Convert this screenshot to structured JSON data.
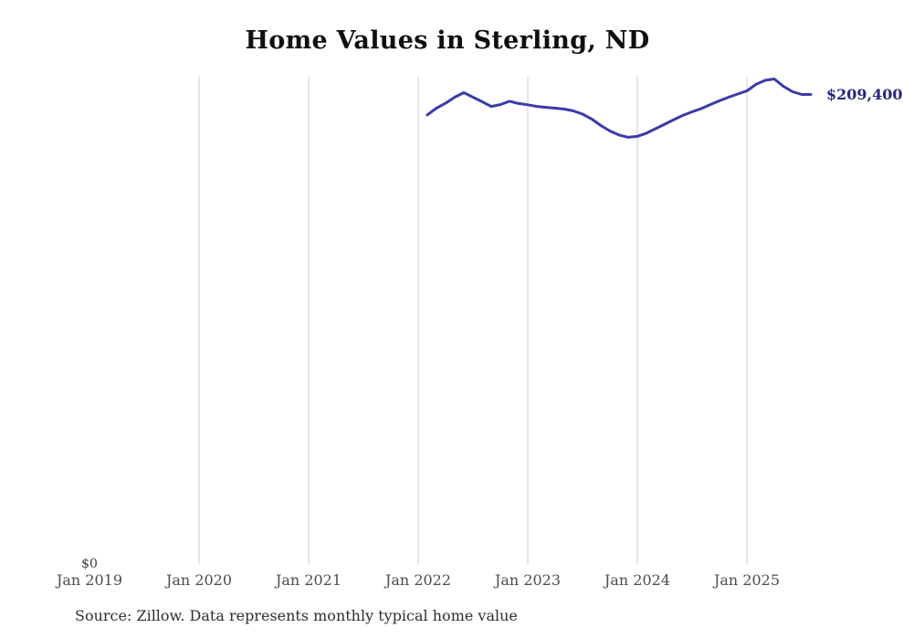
{
  "title": "Home Values in Sterling, ND",
  "source_note": "Source: Zillow. Data represents monthly typical home value",
  "y_zero_label": "$0",
  "end_value_label": "$209,400",
  "colors": {
    "line": "#3b3bab",
    "end_label": "#26267d",
    "grid": "#cccccc",
    "title_text": "#0f0f0f",
    "axis_text": "#4d4d4d",
    "source_text": "#2e2e2e"
  },
  "chart_data": {
    "type": "line",
    "title": "Home Values in Sterling, ND",
    "xlabel": "",
    "ylabel": "",
    "x_tick_labels": [
      "Jan 2019",
      "Jan 2020",
      "Jan 2021",
      "Jan 2022",
      "Jan 2023",
      "Jan 2024",
      "Jan 2025"
    ],
    "ylim": [
      0,
      217000
    ],
    "grid": "vertical",
    "legend": "none",
    "baseline_label": "$0",
    "latest_value_label": "$209,400",
    "series": [
      {
        "name": "Monthly typical home value",
        "x": [
          "2022-02",
          "2022-03",
          "2022-04",
          "2022-05",
          "2022-06",
          "2022-07",
          "2022-08",
          "2022-09",
          "2022-10",
          "2022-11",
          "2022-12",
          "2023-01",
          "2023-02",
          "2023-03",
          "2023-04",
          "2023-05",
          "2023-06",
          "2023-07",
          "2023-08",
          "2023-09",
          "2023-10",
          "2023-11",
          "2023-12",
          "2024-01",
          "2024-02",
          "2024-03",
          "2024-04",
          "2024-05",
          "2024-06",
          "2024-07",
          "2024-08",
          "2024-09",
          "2024-10",
          "2024-11",
          "2024-12",
          "2025-01",
          "2025-02",
          "2025-03",
          "2025-04",
          "2025-05",
          "2025-06",
          "2025-07",
          "2025-08"
        ],
        "values": [
          200300,
          203300,
          205500,
          208200,
          210200,
          208200,
          206200,
          204100,
          204900,
          206400,
          205400,
          204800,
          204100,
          203700,
          203300,
          202900,
          202100,
          200700,
          198500,
          195600,
          193200,
          191400,
          190400,
          190800,
          192200,
          194200,
          196200,
          198200,
          200100,
          201700,
          203100,
          204900,
          206600,
          208200,
          209600,
          211000,
          213900,
          215700,
          216300,
          213000,
          210600,
          209400,
          209400
        ]
      }
    ]
  }
}
